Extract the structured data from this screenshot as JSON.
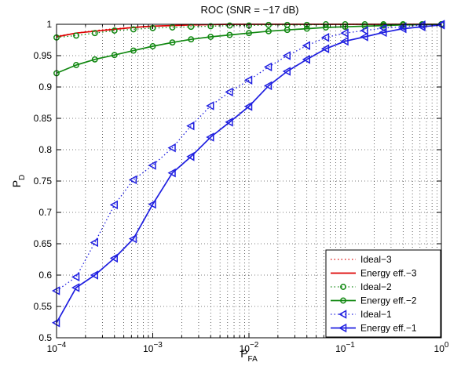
{
  "chart_data": {
    "type": "line",
    "title": "ROC (SNR = −17 dB)",
    "xlabel": {
      "main": "P",
      "sub": "FA"
    },
    "ylabel": {
      "main": "P",
      "sub": "D"
    },
    "x_scale": "log",
    "xlim": [
      0.0001,
      1
    ],
    "ylim": [
      0.5,
      1
    ],
    "x_ticks": [
      {
        "value": 0.0001,
        "base": "10",
        "exp": "−4"
      },
      {
        "value": 0.001,
        "base": "10",
        "exp": "−3"
      },
      {
        "value": 0.01,
        "base": "10",
        "exp": "−2"
      },
      {
        "value": 0.1,
        "base": "10",
        "exp": "−1"
      },
      {
        "value": 1,
        "base": "10",
        "exp": "0"
      }
    ],
    "y_ticks": [
      {
        "value": 0.5,
        "label": "0.5"
      },
      {
        "value": 0.55,
        "label": "0.55"
      },
      {
        "value": 0.6,
        "label": "0.6"
      },
      {
        "value": 0.65,
        "label": "0.65"
      },
      {
        "value": 0.7,
        "label": "0.7"
      },
      {
        "value": 0.75,
        "label": "0.75"
      },
      {
        "value": 0.8,
        "label": "0.8"
      },
      {
        "value": 0.85,
        "label": "0.85"
      },
      {
        "value": 0.9,
        "label": "0.9"
      },
      {
        "value": 0.95,
        "label": "0.95"
      },
      {
        "value": 1,
        "label": "1"
      }
    ],
    "grid": true,
    "legend_position": "bottom-right",
    "series": [
      {
        "name": "Ideal−3",
        "color": "#dd0000",
        "line": "dotted",
        "marker": "none",
        "x": [
          0.0001,
          0.00016,
          0.00025,
          0.0004,
          0.00063,
          0.001,
          0.0016,
          0.0025,
          0.004,
          0.0063,
          0.01,
          0.016,
          0.025,
          0.04,
          0.063,
          0.1,
          0.16,
          0.25,
          0.4,
          0.63,
          1
        ],
        "y": [
          0.981,
          0.986,
          0.99,
          0.993,
          0.995,
          0.997,
          0.998,
          0.999,
          0.9995,
          1,
          1,
          1,
          1,
          1,
          1,
          1,
          1,
          1,
          1,
          1,
          1
        ]
      },
      {
        "name": "Energy eff.−3",
        "color": "#dd0000",
        "line": "solid",
        "marker": "none",
        "x": [
          0.0001,
          0.00016,
          0.00025,
          0.0004,
          0.00063,
          0.001,
          0.0016,
          0.0025,
          0.004,
          0.0063,
          0.01,
          0.016,
          0.025,
          0.04,
          0.063,
          0.1,
          0.16,
          0.25,
          0.4,
          0.63,
          1
        ],
        "y": [
          0.98,
          0.986,
          0.989,
          0.992,
          0.995,
          0.997,
          0.998,
          0.999,
          0.9995,
          1,
          1,
          1,
          1,
          1,
          1,
          1,
          1,
          1,
          1,
          1,
          1
        ]
      },
      {
        "name": "Ideal−2",
        "color": "#118811",
        "line": "dotted",
        "marker": "circle",
        "x": [
          0.0001,
          0.00016,
          0.00025,
          0.0004,
          0.00063,
          0.001,
          0.0016,
          0.0025,
          0.004,
          0.0063,
          0.01,
          0.016,
          0.025,
          0.04,
          0.063,
          0.1,
          0.16,
          0.25,
          0.4,
          0.63,
          1
        ],
        "y": [
          0.979,
          0.982,
          0.986,
          0.99,
          0.992,
          0.994,
          0.995,
          0.996,
          0.997,
          0.998,
          0.998,
          0.999,
          0.999,
          0.999,
          1,
          1,
          1,
          1,
          1,
          1,
          1
        ]
      },
      {
        "name": "Energy eff.−2",
        "color": "#118811",
        "line": "solid",
        "marker": "circle",
        "x": [
          0.0001,
          0.00016,
          0.00025,
          0.0004,
          0.00063,
          0.001,
          0.0016,
          0.0025,
          0.004,
          0.0063,
          0.01,
          0.016,
          0.025,
          0.04,
          0.063,
          0.1,
          0.16,
          0.25,
          0.4,
          0.63,
          1
        ],
        "y": [
          0.922,
          0.935,
          0.944,
          0.951,
          0.958,
          0.965,
          0.971,
          0.976,
          0.98,
          0.983,
          0.986,
          0.989,
          0.991,
          0.993,
          0.995,
          0.996,
          0.997,
          0.998,
          0.999,
          0.9995,
          1
        ]
      },
      {
        "name": "Ideal−1",
        "color": "#1f1fe0",
        "line": "dotted",
        "marker": "triangle-left",
        "x": [
          0.0001,
          0.00016,
          0.00025,
          0.0004,
          0.00063,
          0.001,
          0.0016,
          0.0025,
          0.004,
          0.0063,
          0.01,
          0.016,
          0.025,
          0.04,
          0.063,
          0.1,
          0.16,
          0.25,
          0.4,
          0.63,
          1
        ],
        "y": [
          0.575,
          0.597,
          0.652,
          0.712,
          0.752,
          0.775,
          0.803,
          0.838,
          0.87,
          0.892,
          0.911,
          0.932,
          0.95,
          0.966,
          0.979,
          0.986,
          0.99,
          0.994,
          0.996,
          0.999,
          1
        ]
      },
      {
        "name": "Energy eff.−1",
        "color": "#1f1fe0",
        "line": "solid",
        "marker": "triangle-left",
        "x": [
          0.0001,
          0.00016,
          0.00025,
          0.0004,
          0.00063,
          0.001,
          0.0016,
          0.0025,
          0.004,
          0.0063,
          0.01,
          0.016,
          0.025,
          0.04,
          0.063,
          0.1,
          0.16,
          0.25,
          0.4,
          0.63,
          1
        ],
        "y": [
          0.524,
          0.58,
          0.6,
          0.627,
          0.658,
          0.713,
          0.763,
          0.789,
          0.82,
          0.844,
          0.869,
          0.902,
          0.925,
          0.944,
          0.961,
          0.973,
          0.98,
          0.987,
          0.993,
          0.996,
          0.999
        ]
      }
    ]
  }
}
